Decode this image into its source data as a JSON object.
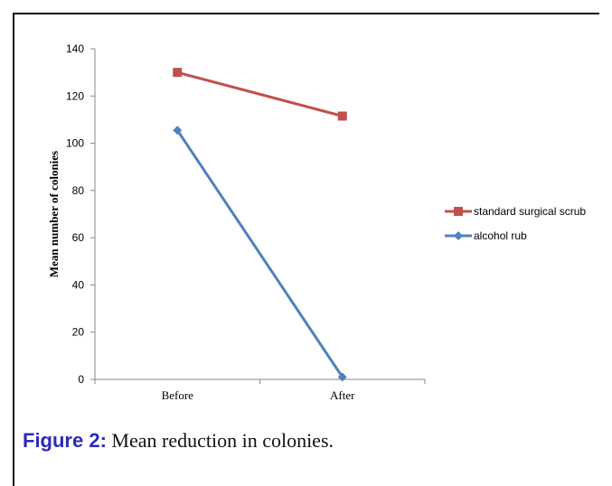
{
  "caption": {
    "label": "Figure 2:",
    "text": "Mean reduction in colonies."
  },
  "chart_data": {
    "type": "line",
    "categories": [
      "Before",
      "After"
    ],
    "series": [
      {
        "name": "standard surgical scrub",
        "values": [
          130,
          111.5
        ],
        "color": "#c0504d",
        "marker": "square"
      },
      {
        "name": "alcohol rub",
        "values": [
          105.5,
          1
        ],
        "color": "#4f81bd",
        "marker": "diamond"
      }
    ],
    "ylabel": "Mean number of colonies",
    "xlabel": "",
    "ylim": [
      0,
      140
    ],
    "yticks": [
      0,
      20,
      40,
      60,
      80,
      100,
      120,
      140
    ],
    "grid": false,
    "legend": "right"
  }
}
